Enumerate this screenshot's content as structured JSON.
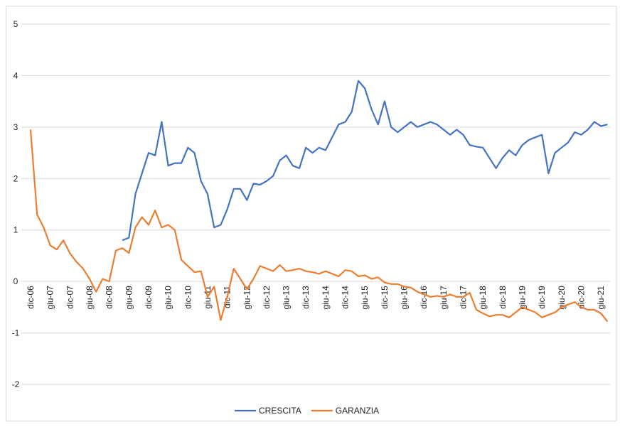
{
  "chart_data": {
    "type": "line",
    "categories": [
      "dic-06",
      null,
      null,
      "giu-07",
      null,
      null,
      "dic-07",
      null,
      null,
      "giu-08",
      null,
      null,
      "dic-08",
      null,
      null,
      "giu-09",
      null,
      null,
      "dic-09",
      null,
      null,
      "giu-10",
      null,
      null,
      "dic-10",
      null,
      null,
      "giu-11",
      null,
      null,
      "dic-11",
      null,
      null,
      "giu-12",
      null,
      null,
      "dic-12",
      null,
      null,
      "giu-13",
      null,
      null,
      "dic-13",
      null,
      null,
      "giu-14",
      null,
      null,
      "dic-14",
      null,
      null,
      "giu-15",
      null,
      null,
      "dic-15",
      null,
      null,
      "giu-16",
      null,
      null,
      "dic-16",
      null,
      null,
      "giu-17",
      null,
      null,
      "dic-17",
      null,
      null,
      "giu-18",
      null,
      null,
      "dic-18",
      null,
      null,
      "giu-19",
      null,
      null,
      "dic-19",
      null,
      null,
      "giu-20",
      null,
      null,
      "dic-20",
      null,
      null,
      "giu-21",
      null
    ],
    "series": [
      {
        "name": "CRESCITA",
        "color": "#4472c4",
        "values": [
          null,
          null,
          null,
          null,
          null,
          null,
          null,
          null,
          null,
          null,
          null,
          null,
          null,
          null,
          0.8,
          0.85,
          1.7,
          2.1,
          2.5,
          2.45,
          3.1,
          2.25,
          2.3,
          2.3,
          2.6,
          2.5,
          1.95,
          1.7,
          1.05,
          1.1,
          1.4,
          1.8,
          1.8,
          1.58,
          1.9,
          1.88,
          1.95,
          2.05,
          2.35,
          2.45,
          2.25,
          2.2,
          2.6,
          2.5,
          2.6,
          2.55,
          2.8,
          3.05,
          3.1,
          3.3,
          3.9,
          3.75,
          3.35,
          3.05,
          3.5,
          3.0,
          2.9,
          3.0,
          3.1,
          3.0,
          3.05,
          3.1,
          3.05,
          2.95,
          2.85,
          2.95,
          2.85,
          2.65,
          2.62,
          2.6,
          2.4,
          2.2,
          2.4,
          2.55,
          2.45,
          2.65,
          2.75,
          2.8,
          2.85,
          2.1,
          2.5,
          2.6,
          2.7,
          2.9,
          2.85,
          2.95,
          3.1,
          3.02,
          3.05
        ]
      },
      {
        "name": "GARANZIA",
        "color": "#ed7d31",
        "values": [
          2.95,
          1.3,
          1.05,
          0.7,
          0.62,
          0.8,
          0.55,
          0.38,
          0.25,
          0.05,
          -0.2,
          0.05,
          0.0,
          0.6,
          0.65,
          0.55,
          1.05,
          1.25,
          1.1,
          1.38,
          1.05,
          1.1,
          1.0,
          0.42,
          0.3,
          0.18,
          0.2,
          -0.3,
          -0.1,
          -0.75,
          -0.3,
          0.25,
          0.05,
          -0.15,
          0.05,
          0.3,
          0.25,
          0.2,
          0.32,
          0.2,
          0.22,
          0.25,
          0.2,
          0.18,
          0.15,
          0.2,
          0.15,
          0.1,
          0.22,
          0.2,
          0.1,
          0.12,
          0.05,
          0.08,
          -0.02,
          -0.05,
          -0.05,
          -0.1,
          -0.12,
          -0.2,
          -0.25,
          -0.3,
          -0.28,
          -0.3,
          -0.25,
          -0.3,
          -0.3,
          -0.22,
          -0.55,
          -0.62,
          -0.68,
          -0.65,
          -0.65,
          -0.7,
          -0.6,
          -0.5,
          -0.55,
          -0.6,
          -0.7,
          -0.65,
          -0.6,
          -0.5,
          -0.45,
          -0.4,
          -0.5,
          -0.55,
          -0.55,
          -0.62,
          -0.78
        ]
      }
    ],
    "ylim": [
      -2,
      5
    ],
    "yticks": [
      -2,
      -1,
      0,
      1,
      2,
      3,
      4,
      5
    ],
    "grid": true,
    "legend": "bottom"
  }
}
